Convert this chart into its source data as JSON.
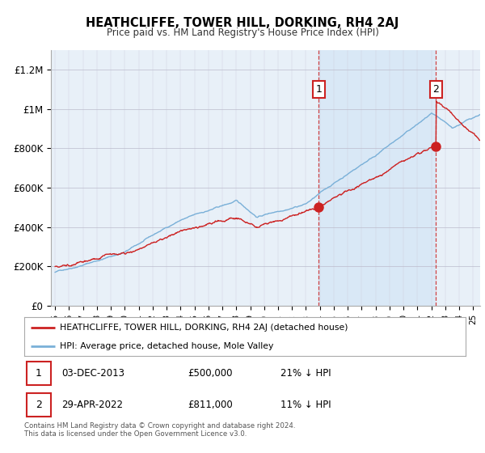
{
  "title": "HEATHCLIFFE, TOWER HILL, DORKING, RH4 2AJ",
  "subtitle": "Price paid vs. HM Land Registry's House Price Index (HPI)",
  "ylabel_ticks": [
    "£0",
    "£200K",
    "£400K",
    "£600K",
    "£800K",
    "£1M",
    "£1.2M"
  ],
  "ytick_values": [
    0,
    200000,
    400000,
    600000,
    800000,
    1000000,
    1200000
  ],
  "ylim": [
    0,
    1300000
  ],
  "xlim_start": 1994.7,
  "xlim_end": 2025.5,
  "hpi_color": "#7ab0d8",
  "hpi_fill_color": "#dceaf5",
  "price_color": "#cc2222",
  "marker1_x": 2013.92,
  "marker1_y": 500000,
  "marker2_x": 2022.33,
  "marker2_y": 811000,
  "vline1_x": 2013.92,
  "vline2_x": 2022.33,
  "legend_line1": "HEATHCLIFFE, TOWER HILL, DORKING, RH4 2AJ (detached house)",
  "legend_line2": "HPI: Average price, detached house, Mole Valley",
  "table_row1_date": "03-DEC-2013",
  "table_row1_price": "£500,000",
  "table_row1_pct": "21% ↓ HPI",
  "table_row2_date": "29-APR-2022",
  "table_row2_price": "£811,000",
  "table_row2_pct": "11% ↓ HPI",
  "footer": "Contains HM Land Registry data © Crown copyright and database right 2024.\nThis data is licensed under the Open Government Licence v3.0.",
  "background_color": "#e8f0f8"
}
